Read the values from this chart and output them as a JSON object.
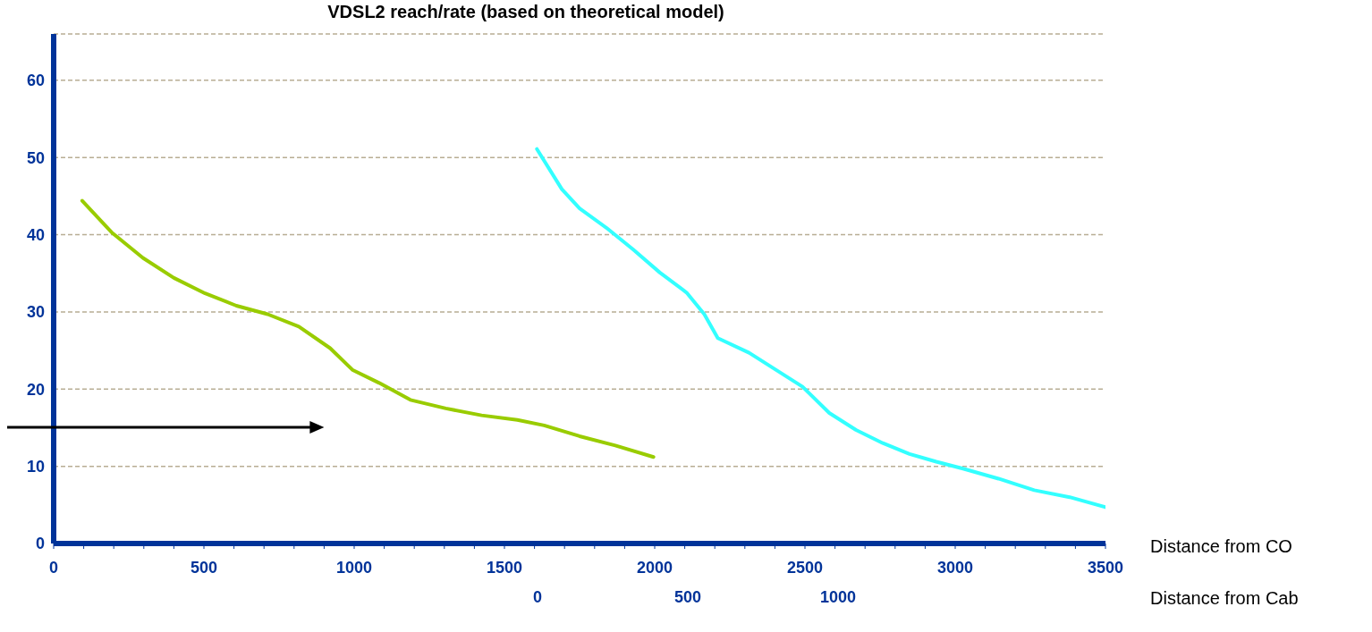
{
  "chart_data": {
    "type": "line",
    "title": "VDSL2 reach/rate (based on theoretical model)",
    "xlabel": "Distance from CO",
    "x2label": "Distance from Cab",
    "series": [
      {
        "color": "#99cc00",
        "x": [
          95,
          193,
          297,
          400,
          504,
          608,
          712,
          816,
          920,
          994,
          1083,
          1187,
          1305,
          1424,
          1543,
          1632,
          1750,
          1869,
          1996
        ],
        "values": [
          44.4,
          40.3,
          37.0,
          34.4,
          32.4,
          30.8,
          29.7,
          28.1,
          25.3,
          22.5,
          20.8,
          18.6,
          17.5,
          16.6,
          16.0,
          15.3,
          13.9,
          12.7,
          11.2
        ]
      },
      {
        "color": "#33ffff",
        "x": [
          1608,
          1691,
          1750,
          1839,
          1928,
          2017,
          2106,
          2165,
          2210,
          2314,
          2403,
          2492,
          2581,
          2670,
          2759,
          2848,
          2937,
          3026,
          3144,
          3263,
          3381,
          3500
        ],
        "values": [
          51.1,
          45.9,
          43.4,
          40.9,
          38.1,
          35.1,
          32.5,
          29.7,
          26.6,
          24.7,
          22.5,
          20.3,
          16.9,
          14.7,
          13.0,
          11.6,
          10.6,
          9.7,
          8.4,
          6.9,
          6.0,
          4.7
        ]
      }
    ],
    "xlim": [
      0,
      3500
    ],
    "xticks": [
      0,
      {
        "value": 100,
        "label": null
      },
      {
        "value": 200,
        "label": null
      },
      {
        "value": 300,
        "label": null
      },
      {
        "value": 400,
        "label": null
      },
      500,
      {
        "value": 600,
        "label": null
      },
      {
        "value": 700,
        "label": null
      },
      {
        "value": 800,
        "label": null
      },
      {
        "value": 900,
        "label": null
      },
      1000,
      {
        "value": 1100,
        "label": null
      },
      {
        "value": 1200,
        "label": null
      },
      {
        "value": 1300,
        "label": null
      },
      {
        "value": 1400,
        "label": null
      },
      1500,
      {
        "value": 1600,
        "label": null
      },
      {
        "value": 1700,
        "label": null
      },
      {
        "value": 1800,
        "label": null
      },
      {
        "value": 1900,
        "label": null
      },
      2000,
      {
        "value": 2100,
        "label": null
      },
      {
        "value": 2200,
        "label": null
      },
      {
        "value": 2300,
        "label": null
      },
      {
        "value": 2400,
        "label": null
      },
      2500,
      {
        "value": 2600,
        "label": null
      },
      {
        "value": 2700,
        "label": null
      },
      {
        "value": 2800,
        "label": null
      },
      {
        "value": 2900,
        "label": null
      },
      3000,
      {
        "value": 3100,
        "label": null
      },
      {
        "value": 3200,
        "label": null
      },
      {
        "value": 3300,
        "label": null
      },
      {
        "value": 3400,
        "label": null
      },
      3500
    ],
    "x2lim": [
      -1610,
      1890
    ],
    "x2ticks": [
      0,
      500,
      1000
    ],
    "ylim": [
      0,
      66
    ],
    "yticks": [
      0,
      10,
      20,
      30,
      40,
      50,
      60
    ],
    "grid": "y",
    "legend": false,
    "marker": "none",
    "line_style": "solid"
  }
}
